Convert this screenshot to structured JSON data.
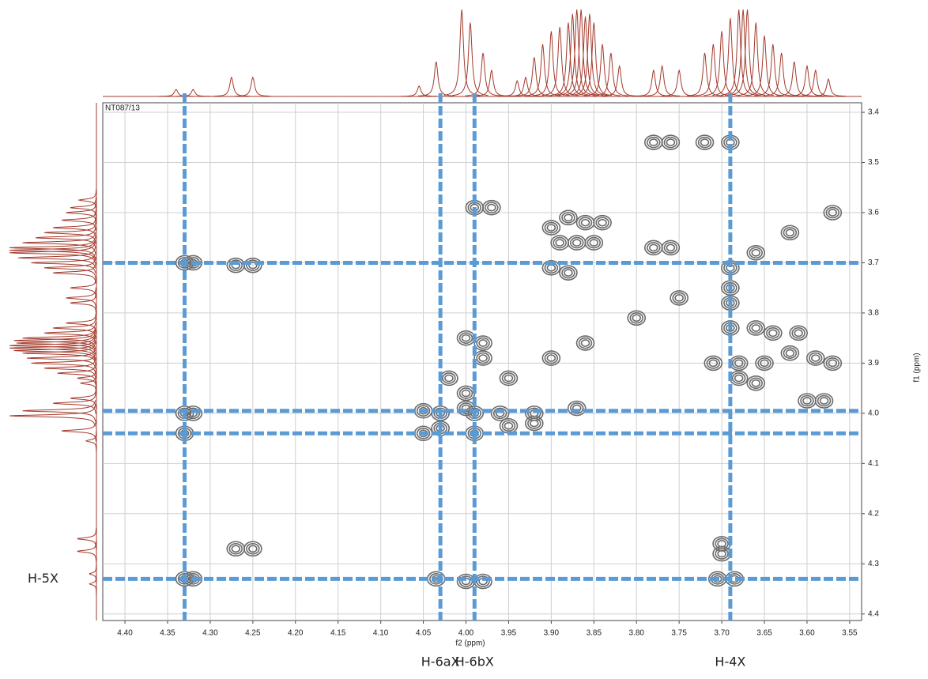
{
  "chart_data": {
    "type": "contour",
    "sample_label": "NT087/13",
    "x_label": "f2 (ppm)",
    "y_label": "f1 (ppm)",
    "xlim": [
      4.426,
      3.536
    ],
    "ylim": [
      3.381,
      4.413
    ],
    "xticks": [
      {
        "value": 4.4,
        "label": "4.40"
      },
      {
        "value": 4.35,
        "label": "4.35"
      },
      {
        "value": 4.3,
        "label": "4.30"
      },
      {
        "value": 4.25,
        "label": "4.25"
      },
      {
        "value": 4.2,
        "label": "4.20"
      },
      {
        "value": 4.15,
        "label": "4.15"
      },
      {
        "value": 4.1,
        "label": "4.10"
      },
      {
        "value": 4.05,
        "label": "4.05"
      },
      {
        "value": 4.0,
        "label": "4.00"
      },
      {
        "value": 3.95,
        "label": "3.95"
      },
      {
        "value": 3.9,
        "label": "3.90"
      },
      {
        "value": 3.85,
        "label": "3.85"
      },
      {
        "value": 3.8,
        "label": "3.80"
      },
      {
        "value": 3.75,
        "label": "3.75"
      },
      {
        "value": 3.7,
        "label": "3.70"
      },
      {
        "value": 3.65,
        "label": "3.65"
      },
      {
        "value": 3.6,
        "label": "3.60"
      },
      {
        "value": 3.55,
        "label": "3.55"
      }
    ],
    "yticks": [
      3.4,
      3.5,
      3.6,
      3.7,
      3.8,
      3.9,
      {
        "value": 4.0,
        "label": "4.0"
      },
      4.1,
      4.2,
      4.3,
      4.4
    ],
    "grid": true,
    "contour_color": "#6a6a6a",
    "marker_color": "#5b9bd5",
    "projection_color": "#a33a2c",
    "peaks": {
      "x": [
        3.57,
        3.62,
        3.66,
        3.69,
        3.75,
        3.8,
        3.86,
        3.9,
        3.95,
        4.0,
        4.03,
        4.33,
        4.33,
        4.32,
        4.27,
        4.25,
        4.33,
        4.32,
        4.33,
        4.27,
        4.25,
        4.32,
        3.78,
        3.76,
        3.72,
        3.69,
        3.99,
        3.97,
        3.9,
        3.88,
        3.86,
        3.84,
        3.89,
        3.87,
        3.85,
        3.9,
        3.88,
        3.78,
        3.76,
        3.69,
        3.69,
        3.69,
        3.66,
        3.64,
        3.61,
        3.71,
        3.68,
        3.65,
        3.62,
        3.59,
        3.57,
        3.68,
        3.66,
        3.6,
        3.58,
        4.0,
        3.98,
        3.98,
        4.02,
        4.0,
        4.05,
        4.03,
        3.99,
        3.96,
        3.92,
        3.87,
        4.05,
        3.99,
        3.95,
        3.92,
        4.035,
        4.0,
        3.98,
        3.705,
        3.685,
        3.7,
        3.7
      ],
      "y": [
        3.6,
        3.64,
        3.68,
        3.71,
        3.77,
        3.81,
        3.86,
        3.89,
        3.93,
        3.99,
        4.03,
        4.33,
        3.7,
        3.7,
        3.705,
        3.705,
        4.0,
        4.0,
        4.04,
        4.27,
        4.27,
        4.33,
        3.46,
        3.46,
        3.46,
        3.46,
        3.59,
        3.59,
        3.63,
        3.61,
        3.62,
        3.62,
        3.66,
        3.66,
        3.66,
        3.71,
        3.72,
        3.67,
        3.67,
        3.75,
        3.78,
        3.83,
        3.83,
        3.84,
        3.84,
        3.9,
        3.9,
        3.9,
        3.88,
        3.89,
        3.9,
        3.93,
        3.94,
        3.975,
        3.975,
        3.85,
        3.86,
        3.89,
        3.93,
        3.96,
        3.995,
        4.0,
        4.0,
        4.0,
        4.0,
        3.99,
        4.04,
        4.04,
        4.025,
        4.02,
        4.33,
        4.335,
        4.335,
        4.33,
        4.33,
        4.26,
        4.28
      ]
    },
    "projection": {
      "ppm": [
        4.34,
        4.32,
        4.275,
        4.25,
        4.055,
        4.035,
        4.005,
        3.995,
        3.98,
        3.97,
        3.94,
        3.93,
        3.92,
        3.91,
        3.9,
        3.89,
        3.88,
        3.875,
        3.87,
        3.865,
        3.86,
        3.855,
        3.85,
        3.84,
        3.83,
        3.82,
        3.78,
        3.77,
        3.75,
        3.72,
        3.71,
        3.7,
        3.69,
        3.68,
        3.675,
        3.67,
        3.66,
        3.65,
        3.64,
        3.63,
        3.615,
        3.6,
        3.59,
        3.575
      ],
      "intensity": [
        8,
        8,
        22,
        22,
        12,
        40,
        100,
        85,
        50,
        30,
        18,
        22,
        45,
        60,
        75,
        80,
        85,
        95,
        100,
        100,
        92,
        95,
        85,
        60,
        50,
        35,
        30,
        35,
        30,
        50,
        60,
        75,
        90,
        100,
        100,
        100,
        85,
        70,
        60,
        50,
        40,
        35,
        30,
        20
      ]
    },
    "x_markers": [
      4.33,
      4.03,
      3.99,
      3.69
    ],
    "x_marker_labels": [
      null,
      "H-6aX",
      "H-6bX",
      "H-4X"
    ],
    "y_markers": [
      3.7,
      3.995,
      4.04,
      4.33
    ],
    "y_marker_labels": [
      null,
      null,
      null,
      "H-5X"
    ]
  }
}
